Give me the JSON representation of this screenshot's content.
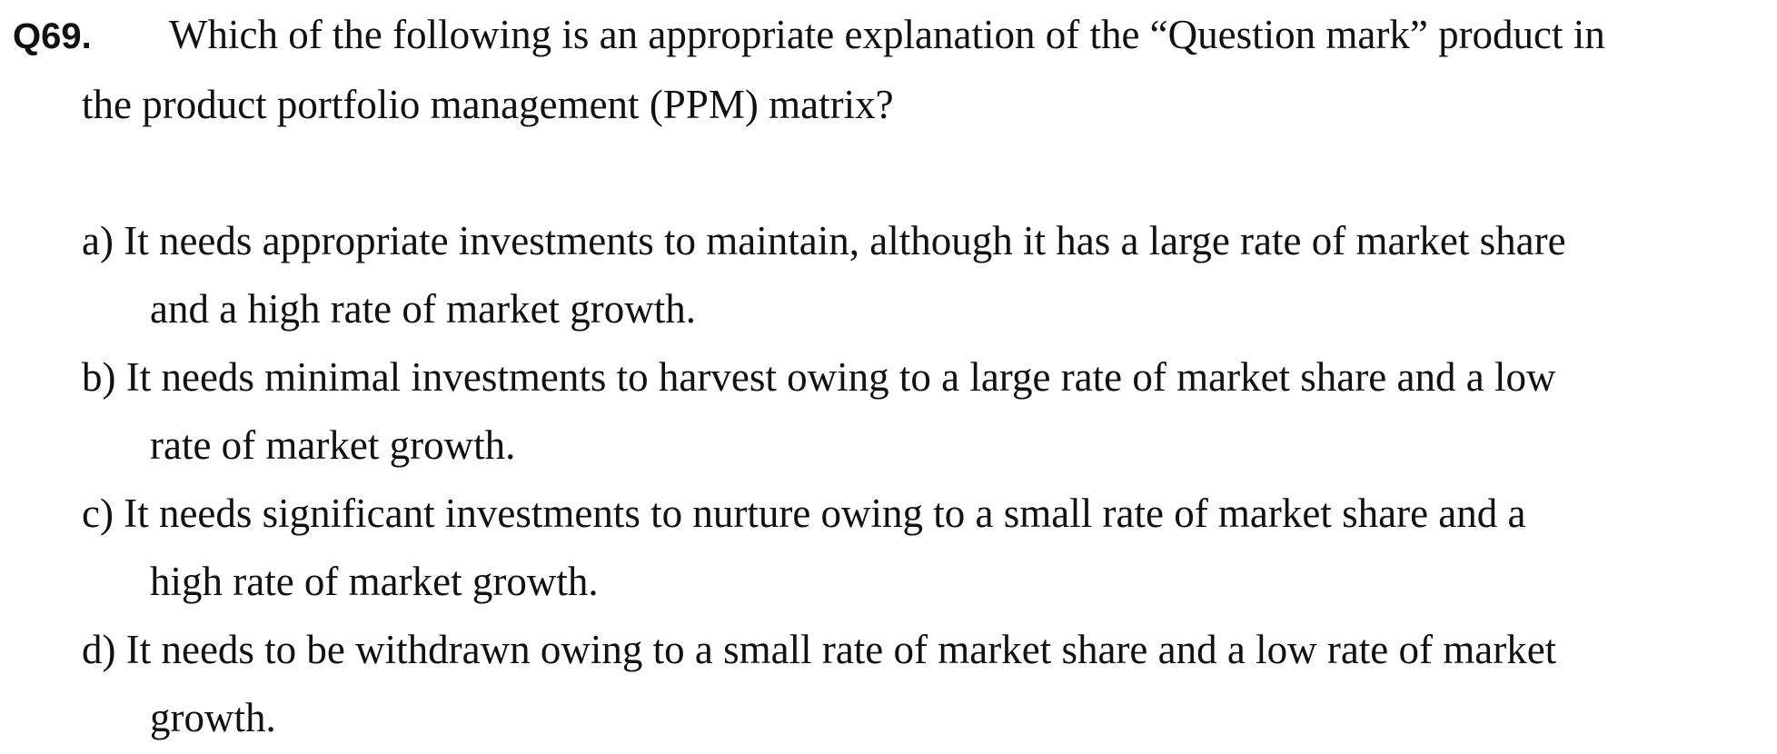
{
  "question": {
    "number": "Q69.",
    "text_line1": "Which of the following is an appropriate explanation of the “Question mark” product in",
    "text_line2": "the product portfolio management (PPM) matrix?"
  },
  "options": [
    {
      "label": "a)",
      "line1": "a) It needs appropriate investments to maintain, although it has a large rate of market share",
      "line2": "and a high rate of market growth."
    },
    {
      "label": "b)",
      "line1": "b) It needs minimal investments to harvest owing to a large rate of market share and a low",
      "line2": "rate of market growth."
    },
    {
      "label": "c)",
      "line1": "c) It needs significant investments to nurture owing to a small rate of market share and a",
      "line2": "high rate of market growth."
    },
    {
      "label": "d)",
      "line1": "d) It needs to be withdrawn owing to a small rate of market share and a low rate of market",
      "line2": "growth."
    }
  ]
}
